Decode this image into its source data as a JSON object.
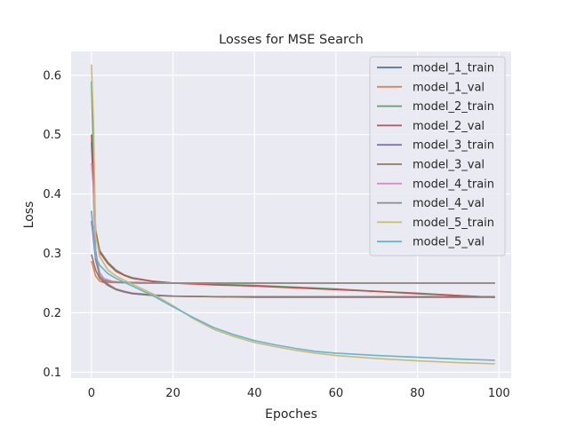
{
  "chart_data": {
    "type": "line",
    "title": "Losses for MSE Search",
    "xlabel": "Epoches",
    "ylabel": "Loss",
    "xlim": [
      -5,
      103
    ],
    "ylim": [
      0.09,
      0.64
    ],
    "xticks": [
      0,
      20,
      40,
      60,
      80,
      100
    ],
    "yticks": [
      0.1,
      0.2,
      0.3,
      0.4,
      0.5,
      0.6
    ],
    "grid": true,
    "legend_position": "top-right",
    "series": [
      {
        "name": "model_1_train",
        "color": "#4c72b0",
        "points": [
          [
            0,
            0.487
          ],
          [
            0.5,
            0.4
          ],
          [
            1,
            0.305
          ],
          [
            2,
            0.262
          ],
          [
            3,
            0.255
          ],
          [
            5,
            0.252
          ],
          [
            10,
            0.251
          ],
          [
            20,
            0.25
          ],
          [
            40,
            0.25
          ],
          [
            60,
            0.25
          ],
          [
            80,
            0.25
          ],
          [
            99,
            0.25
          ]
        ]
      },
      {
        "name": "model_1_val",
        "color": "#dd8452",
        "points": [
          [
            0,
            0.287
          ],
          [
            1,
            0.262
          ],
          [
            2,
            0.253
          ],
          [
            3,
            0.251
          ],
          [
            5,
            0.251
          ],
          [
            10,
            0.25
          ],
          [
            20,
            0.25
          ],
          [
            40,
            0.25
          ],
          [
            60,
            0.25
          ],
          [
            80,
            0.25
          ],
          [
            99,
            0.25
          ]
        ]
      },
      {
        "name": "model_2_train",
        "color": "#55a868",
        "points": [
          [
            0,
            0.59
          ],
          [
            0.5,
            0.45
          ],
          [
            1,
            0.34
          ],
          [
            2,
            0.305
          ],
          [
            4,
            0.285
          ],
          [
            6,
            0.272
          ],
          [
            8,
            0.264
          ],
          [
            10,
            0.259
          ],
          [
            15,
            0.253
          ],
          [
            20,
            0.25
          ],
          [
            30,
            0.248
          ],
          [
            40,
            0.246
          ],
          [
            50,
            0.243
          ],
          [
            60,
            0.24
          ],
          [
            70,
            0.236
          ],
          [
            80,
            0.233
          ],
          [
            90,
            0.229
          ],
          [
            99,
            0.226
          ]
        ]
      },
      {
        "name": "model_2_val",
        "color": "#c44e52",
        "points": [
          [
            0,
            0.5
          ],
          [
            0.5,
            0.42
          ],
          [
            1,
            0.335
          ],
          [
            2,
            0.302
          ],
          [
            4,
            0.283
          ],
          [
            6,
            0.27
          ],
          [
            8,
            0.263
          ],
          [
            10,
            0.258
          ],
          [
            15,
            0.253
          ],
          [
            20,
            0.25
          ],
          [
            30,
            0.247
          ],
          [
            40,
            0.245
          ],
          [
            50,
            0.242
          ],
          [
            60,
            0.239
          ],
          [
            70,
            0.236
          ],
          [
            80,
            0.232
          ],
          [
            90,
            0.229
          ],
          [
            99,
            0.226
          ]
        ]
      },
      {
        "name": "model_3_train",
        "color": "#8172b3",
        "points": [
          [
            0,
            0.355
          ],
          [
            1,
            0.29
          ],
          [
            2,
            0.262
          ],
          [
            4,
            0.248
          ],
          [
            6,
            0.24
          ],
          [
            8,
            0.236
          ],
          [
            10,
            0.233
          ],
          [
            15,
            0.23
          ],
          [
            20,
            0.228
          ],
          [
            30,
            0.227
          ],
          [
            40,
            0.227
          ],
          [
            60,
            0.227
          ],
          [
            80,
            0.227
          ],
          [
            99,
            0.227
          ]
        ]
      },
      {
        "name": "model_3_val",
        "color": "#937860",
        "points": [
          [
            0,
            0.298
          ],
          [
            1,
            0.272
          ],
          [
            2,
            0.258
          ],
          [
            4,
            0.246
          ],
          [
            6,
            0.239
          ],
          [
            8,
            0.235
          ],
          [
            10,
            0.232
          ],
          [
            15,
            0.229
          ],
          [
            20,
            0.228
          ],
          [
            30,
            0.227
          ],
          [
            40,
            0.226
          ],
          [
            60,
            0.226
          ],
          [
            80,
            0.226
          ],
          [
            99,
            0.226
          ]
        ]
      },
      {
        "name": "model_4_train",
        "color": "#da8bc3",
        "points": [
          [
            0,
            0.452
          ],
          [
            0.5,
            0.4
          ],
          [
            1,
            0.3
          ],
          [
            2,
            0.268
          ],
          [
            3,
            0.258
          ],
          [
            5,
            0.253
          ],
          [
            8,
            0.251
          ],
          [
            12,
            0.25
          ],
          [
            20,
            0.25
          ],
          [
            40,
            0.25
          ],
          [
            60,
            0.25
          ],
          [
            80,
            0.25
          ],
          [
            99,
            0.25
          ]
        ]
      },
      {
        "name": "model_4_val",
        "color": "#8c8c8c",
        "points": [
          [
            0,
            0.37
          ],
          [
            1,
            0.295
          ],
          [
            2,
            0.262
          ],
          [
            3,
            0.255
          ],
          [
            5,
            0.252
          ],
          [
            8,
            0.251
          ],
          [
            12,
            0.25
          ],
          [
            20,
            0.25
          ],
          [
            40,
            0.25
          ],
          [
            60,
            0.25
          ],
          [
            80,
            0.25
          ],
          [
            99,
            0.25
          ]
        ]
      },
      {
        "name": "model_5_train",
        "color": "#ccb974",
        "points": [
          [
            0,
            0.618
          ],
          [
            0.5,
            0.52
          ],
          [
            1,
            0.33
          ],
          [
            2,
            0.295
          ],
          [
            4,
            0.272
          ],
          [
            6,
            0.262
          ],
          [
            10,
            0.248
          ],
          [
            15,
            0.232
          ],
          [
            20,
            0.212
          ],
          [
            25,
            0.19
          ],
          [
            30,
            0.172
          ],
          [
            35,
            0.16
          ],
          [
            40,
            0.15
          ],
          [
            45,
            0.143
          ],
          [
            50,
            0.137
          ],
          [
            55,
            0.132
          ],
          [
            60,
            0.128
          ],
          [
            70,
            0.123
          ],
          [
            80,
            0.119
          ],
          [
            90,
            0.116
          ],
          [
            99,
            0.114
          ]
        ]
      },
      {
        "name": "model_5_val",
        "color": "#64b5cd",
        "points": [
          [
            0,
            0.372
          ],
          [
            1,
            0.295
          ],
          [
            2,
            0.28
          ],
          [
            4,
            0.266
          ],
          [
            6,
            0.258
          ],
          [
            10,
            0.245
          ],
          [
            15,
            0.229
          ],
          [
            20,
            0.21
          ],
          [
            25,
            0.192
          ],
          [
            30,
            0.175
          ],
          [
            35,
            0.163
          ],
          [
            40,
            0.153
          ],
          [
            45,
            0.146
          ],
          [
            50,
            0.14
          ],
          [
            55,
            0.135
          ],
          [
            60,
            0.132
          ],
          [
            70,
            0.128
          ],
          [
            80,
            0.125
          ],
          [
            90,
            0.122
          ],
          [
            99,
            0.12
          ]
        ]
      }
    ]
  }
}
